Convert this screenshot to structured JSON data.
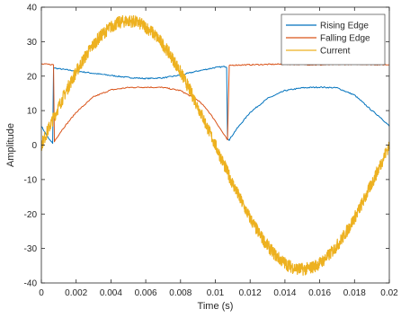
{
  "chart_data": {
    "type": "line",
    "xlabel": "Time (s)",
    "ylabel": "Amplitude",
    "xlim": [
      0,
      0.02
    ],
    "ylim": [
      -40,
      40
    ],
    "xticks": [
      0,
      0.002,
      0.004,
      0.006,
      0.008,
      0.01,
      0.012,
      0.014,
      0.016,
      0.018,
      0.02
    ],
    "xtick_labels": [
      "0",
      "0.002",
      "0.004",
      "0.006",
      "0.008",
      "0.01",
      "0.012",
      "0.014",
      "0.016",
      "0.018",
      "0.02"
    ],
    "yticks": [
      -40,
      -30,
      -20,
      -10,
      0,
      10,
      20,
      30,
      40
    ],
    "ytick_labels": [
      "-40",
      "-30",
      "-20",
      "-10",
      "0",
      "10",
      "20",
      "30",
      "40"
    ],
    "grid": false,
    "legend_position": "top-right",
    "series": [
      {
        "name": "Rising Edge",
        "color": "#0072BD",
        "x": [
          0,
          0.0004,
          0.00065,
          0.0007,
          0.0008,
          0.0012,
          0.002,
          0.003,
          0.004,
          0.005,
          0.006,
          0.007,
          0.008,
          0.009,
          0.01,
          0.0106,
          0.01065,
          0.0107,
          0.0108,
          0.0112,
          0.012,
          0.013,
          0.014,
          0.015,
          0.016,
          0.017,
          0.018,
          0.019,
          0.0195,
          0.02
        ],
        "values": [
          5.5,
          2,
          0.5,
          22.5,
          22.3,
          22,
          21.5,
          20.8,
          20.2,
          19.6,
          19.3,
          19.5,
          20.3,
          21.5,
          22.5,
          22.8,
          22.5,
          2,
          1.5,
          4.5,
          9.5,
          13.5,
          15.8,
          16.6,
          16.8,
          16.6,
          14.5,
          10,
          8,
          5.5
        ]
      },
      {
        "name": "Falling Edge",
        "color": "#D95319",
        "x": [
          0,
          0.0005,
          0.0007,
          0.00075,
          0.0008,
          0.0012,
          0.002,
          0.003,
          0.004,
          0.005,
          0.006,
          0.007,
          0.008,
          0.009,
          0.0095,
          0.01,
          0.0105,
          0.0107,
          0.0108,
          0.011,
          0.012,
          0.013,
          0.014,
          0.015,
          0.016,
          0.017,
          0.018,
          0.019,
          0.02
        ],
        "values": [
          23.5,
          23.4,
          23.3,
          1,
          1.5,
          4.5,
          9.5,
          14,
          16,
          16.7,
          16.8,
          16.7,
          15.8,
          13,
          10.5,
          7,
          3,
          1.5,
          23,
          23.2,
          23.3,
          23.4,
          23.5,
          23.4,
          23.3,
          23.4,
          23.5,
          23.4,
          23.3
        ]
      },
      {
        "name": "Current",
        "color": "#EDB120",
        "amplitude": 36,
        "period": 0.02,
        "phase_offset": -0.0008,
        "noise": 1.8
      }
    ]
  }
}
